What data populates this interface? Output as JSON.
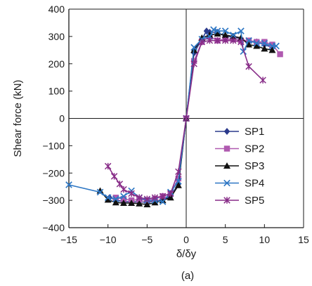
{
  "chart_data": {
    "type": "line",
    "xlabel": "δ/δy",
    "ylabel": "Shear force  (kN)",
    "caption": "(a)",
    "xlim": [
      -15,
      15
    ],
    "ylim": [
      -400,
      400
    ],
    "xticks": [
      -15,
      -10,
      -5,
      0,
      5,
      10,
      15
    ],
    "yticks": [
      -400,
      -300,
      -200,
      -100,
      0,
      100,
      200,
      300,
      400
    ],
    "grid": false,
    "legend_position": "lower-right",
    "series": [
      {
        "name": "SP1",
        "color": "#2b3a8c",
        "marker": "diamond",
        "points": [
          [
            -9.8,
            -290
          ],
          [
            -9,
            -298
          ],
          [
            -8,
            -305
          ],
          [
            -7,
            -305
          ],
          [
            -6,
            -306
          ],
          [
            -5,
            -306
          ],
          [
            -4,
            -303
          ],
          [
            -3,
            -298
          ],
          [
            -2,
            -285
          ],
          [
            -1,
            -240
          ],
          [
            0,
            0
          ],
          [
            1,
            240
          ],
          [
            2,
            290
          ],
          [
            2.6,
            320
          ],
          [
            3,
            315
          ],
          [
            4,
            315
          ],
          [
            5,
            300
          ],
          [
            6,
            300
          ],
          [
            7,
            290
          ],
          [
            8,
            280
          ],
          [
            9,
            280
          ],
          [
            10,
            270
          ],
          [
            11,
            260
          ]
        ]
      },
      {
        "name": "SP2",
        "color": "#b05ab0",
        "marker": "square",
        "points": [
          [
            -9,
            -290
          ],
          [
            -8,
            -295
          ],
          [
            -7,
            -300
          ],
          [
            -6,
            -297
          ],
          [
            -5,
            -300
          ],
          [
            -4,
            -295
          ],
          [
            -3,
            -285
          ],
          [
            -2,
            -275
          ],
          [
            -1,
            -220
          ],
          [
            0,
            0
          ],
          [
            1,
            210
          ],
          [
            2,
            280
          ],
          [
            3,
            300
          ],
          [
            4,
            285
          ],
          [
            5,
            290
          ],
          [
            6,
            290
          ],
          [
            7,
            285
          ],
          [
            8,
            285
          ],
          [
            9,
            280
          ],
          [
            10,
            280
          ],
          [
            11,
            270
          ],
          [
            12,
            235
          ]
        ]
      },
      {
        "name": "SP3",
        "color": "#111111",
        "marker": "triangle",
        "points": [
          [
            -11,
            -265
          ],
          [
            -10,
            -298
          ],
          [
            -9,
            -308
          ],
          [
            -8,
            -310
          ],
          [
            -7,
            -310
          ],
          [
            -6,
            -312
          ],
          [
            -5,
            -315
          ],
          [
            -4,
            -308
          ],
          [
            -3,
            -300
          ],
          [
            -2,
            -290
          ],
          [
            -1,
            -245
          ],
          [
            0,
            0
          ],
          [
            1,
            250
          ],
          [
            2,
            295
          ],
          [
            3,
            305
          ],
          [
            4,
            310
          ],
          [
            5,
            305
          ],
          [
            6,
            300
          ],
          [
            7,
            295
          ],
          [
            8,
            270
          ],
          [
            9,
            265
          ],
          [
            10,
            255
          ],
          [
            11,
            250
          ]
        ]
      },
      {
        "name": "SP4",
        "color": "#2e77c4",
        "marker": "x",
        "points": [
          [
            -15,
            -243
          ],
          [
            -11,
            -270
          ],
          [
            -10,
            -290
          ],
          [
            -9,
            -295
          ],
          [
            -8,
            -285
          ],
          [
            -7,
            -265
          ],
          [
            -6,
            -290
          ],
          [
            -5,
            -300
          ],
          [
            -4,
            -300
          ],
          [
            -3,
            -305
          ],
          [
            -2,
            -270
          ],
          [
            -1,
            -230
          ],
          [
            0,
            0
          ],
          [
            1,
            260
          ],
          [
            2,
            290
          ],
          [
            3,
            300
          ],
          [
            3.5,
            325
          ],
          [
            4,
            320
          ],
          [
            5,
            320
          ],
          [
            6,
            305
          ],
          [
            7,
            320
          ],
          [
            7.3,
            245
          ],
          [
            8,
            285
          ],
          [
            9,
            275
          ],
          [
            10,
            275
          ],
          [
            11,
            265
          ],
          [
            11.5,
            265
          ]
        ]
      },
      {
        "name": "SP5",
        "color": "#882d88",
        "marker": "star",
        "points": [
          [
            -10,
            -175
          ],
          [
            -9.2,
            -212
          ],
          [
            -8.5,
            -240
          ],
          [
            -8,
            -260
          ],
          [
            -7,
            -275
          ],
          [
            -6,
            -290
          ],
          [
            -5,
            -295
          ],
          [
            -4,
            -290
          ],
          [
            -3,
            -285
          ],
          [
            -2,
            -275
          ],
          [
            -1,
            -195
          ],
          [
            0,
            0
          ],
          [
            1,
            200
          ],
          [
            2,
            280
          ],
          [
            3,
            285
          ],
          [
            4,
            285
          ],
          [
            5,
            285
          ],
          [
            6,
            285
          ],
          [
            7,
            280
          ],
          [
            8,
            190
          ],
          [
            9.8,
            140
          ]
        ]
      }
    ]
  }
}
